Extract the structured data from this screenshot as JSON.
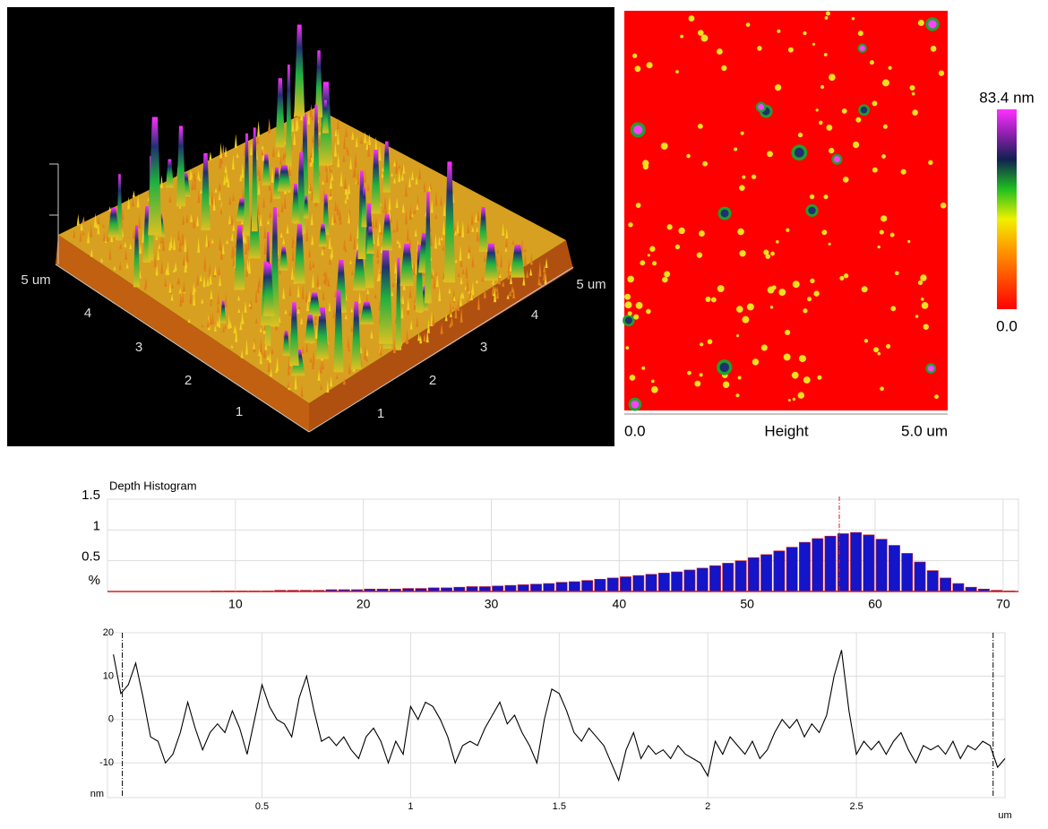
{
  "surface_3d": {
    "left_axis_labels": [
      "5 um",
      "4",
      "3",
      "2",
      "1"
    ],
    "right_axis_labels": [
      "1",
      "2",
      "3",
      "4",
      "5 um"
    ]
  },
  "height_map": {
    "colorbar_max_label": "83.4 nm",
    "colorbar_min_label": "0.0",
    "x_start_label": "0.0",
    "x_label": "Height",
    "x_end_label": "5.0 um"
  },
  "chart_data": [
    {
      "type": "histogram",
      "title": "Depth Histogram",
      "y_label": "%",
      "color": "#1414c8",
      "outline_color": "#d02020",
      "bins": [
        8,
        9,
        10,
        11,
        12,
        13,
        14,
        15,
        16,
        17,
        18,
        19,
        20,
        21,
        22,
        23,
        24,
        25,
        26,
        27,
        28,
        29,
        30,
        31,
        32,
        33,
        34,
        35,
        36,
        37,
        38,
        39,
        40,
        41,
        42,
        43,
        44,
        45,
        46,
        47,
        48,
        49,
        50,
        51,
        52,
        53,
        54,
        55,
        56,
        57,
        58,
        59,
        60,
        61,
        62,
        63,
        64,
        65,
        66,
        67,
        68,
        69,
        70,
        71
      ],
      "values": [
        0.01,
        0.01,
        0.01,
        0.01,
        0.01,
        0.02,
        0.02,
        0.02,
        0.02,
        0.03,
        0.03,
        0.03,
        0.04,
        0.04,
        0.04,
        0.05,
        0.05,
        0.06,
        0.06,
        0.07,
        0.08,
        0.08,
        0.09,
        0.1,
        0.11,
        0.12,
        0.13,
        0.15,
        0.16,
        0.18,
        0.2,
        0.22,
        0.24,
        0.26,
        0.28,
        0.3,
        0.32,
        0.35,
        0.38,
        0.42,
        0.46,
        0.5,
        0.55,
        0.6,
        0.66,
        0.72,
        0.8,
        0.86,
        0.9,
        0.94,
        0.96,
        0.92,
        0.85,
        0.75,
        0.62,
        0.48,
        0.34,
        0.22,
        0.13,
        0.07,
        0.04,
        0.02,
        0.01
      ],
      "marker": 57.2,
      "xlim": [
        0,
        71.2
      ],
      "xticks": [
        10,
        20,
        30,
        40,
        50,
        60,
        70
      ],
      "ylim": [
        0,
        1.5
      ],
      "yticks": [
        0.5,
        1,
        1.5
      ],
      "grid": true
    },
    {
      "type": "line",
      "x_label": "um",
      "y_label": "nm",
      "color": "#000000",
      "x": [
        0,
        0.025,
        0.05,
        0.075,
        0.1,
        0.125,
        0.15,
        0.175,
        0.2,
        0.225,
        0.25,
        0.275,
        0.3,
        0.325,
        0.35,
        0.375,
        0.4,
        0.425,
        0.45,
        0.475,
        0.5,
        0.525,
        0.55,
        0.575,
        0.6,
        0.625,
        0.65,
        0.675,
        0.7,
        0.725,
        0.75,
        0.775,
        0.8,
        0.825,
        0.85,
        0.875,
        0.9,
        0.925,
        0.95,
        0.975,
        1.0,
        1.025,
        1.05,
        1.075,
        1.1,
        1.125,
        1.15,
        1.175,
        1.2,
        1.225,
        1.25,
        1.275,
        1.3,
        1.325,
        1.35,
        1.375,
        1.4,
        1.425,
        1.45,
        1.475,
        1.5,
        1.525,
        1.55,
        1.575,
        1.6,
        1.625,
        1.65,
        1.675,
        1.7,
        1.725,
        1.75,
        1.775,
        1.8,
        1.825,
        1.85,
        1.875,
        1.9,
        1.925,
        1.95,
        1.975,
        2.0,
        2.025,
        2.05,
        2.075,
        2.1,
        2.125,
        2.15,
        2.175,
        2.2,
        2.225,
        2.25,
        2.275,
        2.3,
        2.325,
        2.35,
        2.375,
        2.4,
        2.425,
        2.45,
        2.475,
        2.5,
        2.525,
        2.55,
        2.575,
        2.6,
        2.625,
        2.65,
        2.675,
        2.7,
        2.725,
        2.75,
        2.775,
        2.8,
        2.825,
        2.85,
        2.875,
        2.9,
        2.925,
        2.95,
        2.975,
        3.0
      ],
      "values": [
        15,
        6,
        8,
        13,
        5,
        -4,
        -5,
        -10,
        -8,
        -3,
        4,
        -2,
        -7,
        -3,
        -1,
        -3,
        2,
        -2,
        -8,
        0,
        8,
        3,
        0,
        -1,
        -4,
        5,
        10,
        2,
        -5,
        -4,
        -6,
        -4,
        -7,
        -9,
        -4,
        -2,
        -5,
        -10,
        -5,
        -8,
        3,
        0,
        4,
        3,
        0,
        -4,
        -10,
        -6,
        -5,
        -6,
        -2,
        1,
        4,
        -1,
        1,
        -3,
        -6,
        -10,
        0,
        7,
        6,
        2,
        -3,
        -5,
        -2,
        -4,
        -6,
        -10,
        -14,
        -7,
        -3,
        -9,
        -6,
        -8,
        -7,
        -9,
        -6,
        -8,
        -9,
        -10,
        -13,
        -5,
        -8,
        -4,
        -6,
        -8,
        -5,
        -9,
        -7,
        -3,
        0,
        -2,
        0,
        -4,
        -1,
        -3,
        1,
        10,
        16,
        2,
        -8,
        -5,
        -7,
        -5,
        -8,
        -5,
        -3,
        -7,
        -10,
        -6,
        -7,
        -6,
        -8,
        -5,
        -9,
        -6,
        -7,
        -5,
        -6,
        -11,
        -9
      ],
      "cursors": [
        0.03,
        2.96
      ],
      "xlim": [
        -0.02,
        3.0
      ],
      "xticks": [
        0.5,
        1,
        1.5,
        2,
        2.5
      ],
      "ylim": [
        -18,
        20
      ],
      "yticks": [
        -10,
        0,
        10,
        20
      ],
      "grid": true
    }
  ]
}
